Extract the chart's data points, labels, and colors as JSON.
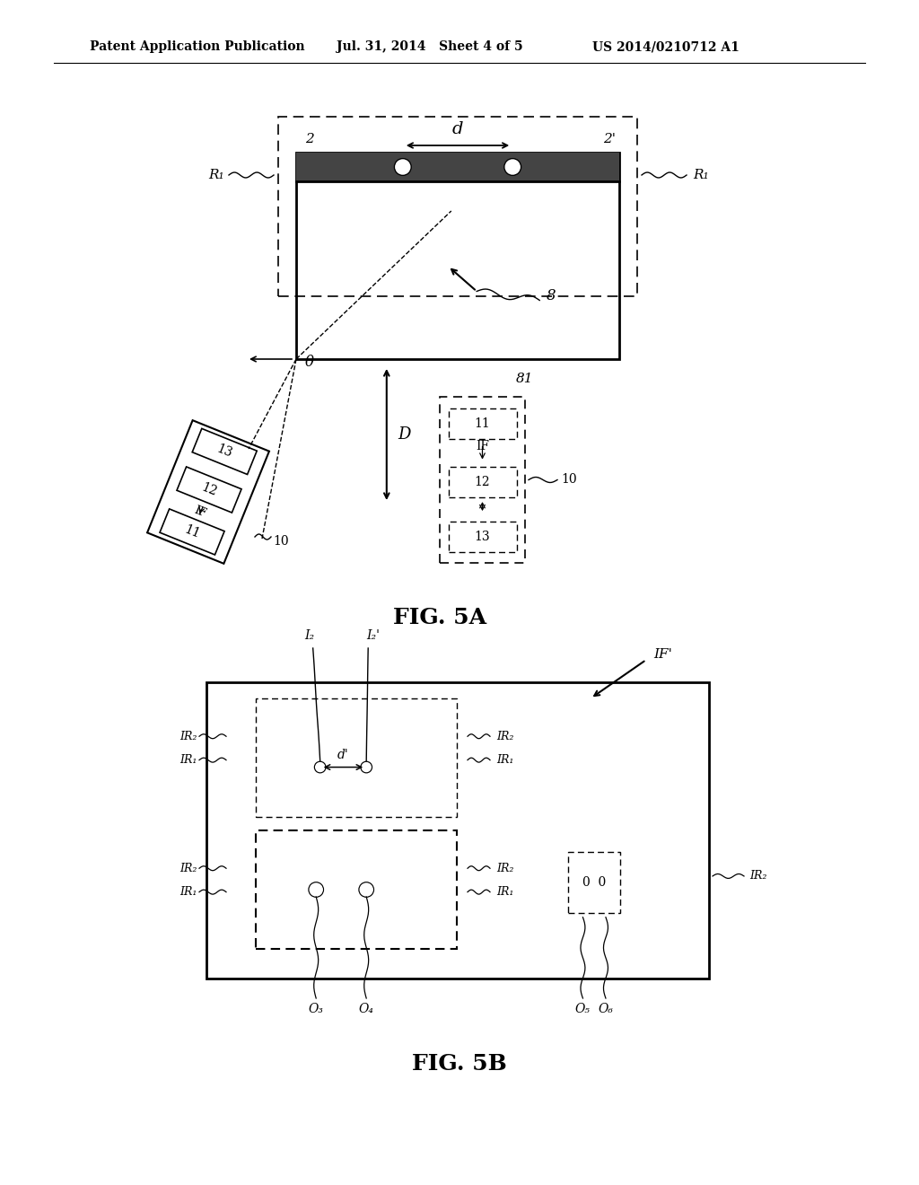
{
  "bg_color": "#ffffff",
  "header_left": "Patent Application Publication",
  "header_mid": "Jul. 31, 2014   Sheet 4 of 5",
  "header_right": "US 2014/0210712 A1",
  "fig5a_label": "FIG. 5A",
  "fig5b_label": "FIG. 5B",
  "line_color": "#000000"
}
